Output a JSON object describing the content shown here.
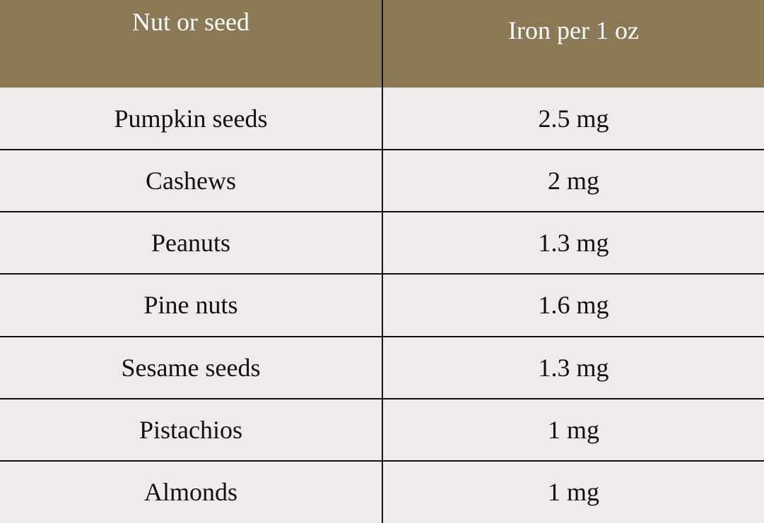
{
  "table": {
    "header": [
      "Nut or seed",
      "Iron per 1 oz"
    ],
    "rows": [
      [
        "Pumpkin seeds",
        "2.5 mg"
      ],
      [
        "Cashews",
        "2 mg"
      ],
      [
        "Peanuts",
        "1.3 mg"
      ],
      [
        "Pine nuts",
        "1.6 mg"
      ],
      [
        "Sesame seeds",
        "1.3 mg"
      ],
      [
        "Pistachios",
        "1 mg"
      ],
      [
        "Almonds",
        "1 mg"
      ]
    ]
  }
}
